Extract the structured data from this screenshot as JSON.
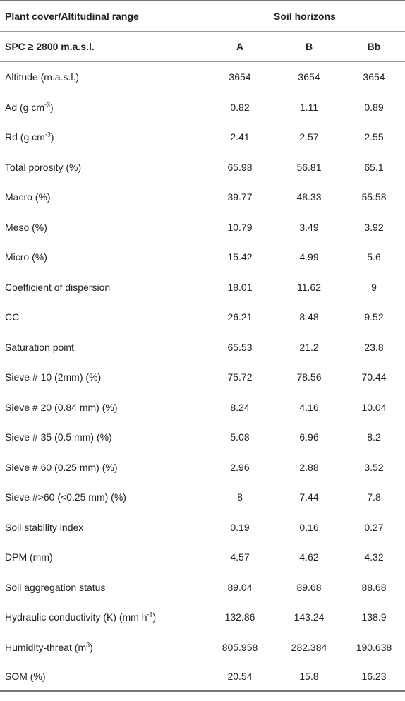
{
  "header": {
    "col0_title": "Plant cover/Altitudinal range",
    "group_title": "Soil horizons",
    "row_group_label": "SPC ≥ 2800 m.a.s.l.",
    "columns": [
      "A",
      "B",
      "Bb"
    ]
  },
  "rows": [
    {
      "label": "Altitude (m.a.s.l.)",
      "sup": "",
      "label_after": "",
      "values": [
        "3654",
        "3654",
        "3654"
      ]
    },
    {
      "label": "Ad (g cm",
      "sup": "-3",
      "label_after": ")",
      "values": [
        "0.82",
        "1.11",
        "0.89"
      ]
    },
    {
      "label": "Rd (g cm",
      "sup": "-3",
      "label_after": ")",
      "values": [
        "2.41",
        "2.57",
        "2.55"
      ]
    },
    {
      "label": "Total porosity (%)",
      "sup": "",
      "label_after": "",
      "values": [
        "65.98",
        "56.81",
        "65.1"
      ]
    },
    {
      "label": "Macro (%)",
      "sup": "",
      "label_after": "",
      "values": [
        "39.77",
        "48.33",
        "55.58"
      ]
    },
    {
      "label": "Meso (%)",
      "sup": "",
      "label_after": "",
      "values": [
        "10.79",
        "3.49",
        "3.92"
      ]
    },
    {
      "label": "Micro (%)",
      "sup": "",
      "label_after": "",
      "values": [
        "15.42",
        "4.99",
        "5.6"
      ]
    },
    {
      "label": "Coefficient of dispersion",
      "sup": "",
      "label_after": "",
      "values": [
        "18.01",
        "11.62",
        "9"
      ]
    },
    {
      "label": "CC",
      "sup": "",
      "label_after": "",
      "values": [
        "26.21",
        "8.48",
        "9.52"
      ]
    },
    {
      "label": "Saturation point",
      "sup": "",
      "label_after": "",
      "values": [
        "65.53",
        "21.2",
        "23.8"
      ]
    },
    {
      "label": "Sieve # 10 (2mm) (%)",
      "sup": "",
      "label_after": "",
      "values": [
        "75.72",
        "78.56",
        "70.44"
      ]
    },
    {
      "label": "Sieve # 20 (0.84 mm) (%)",
      "sup": "",
      "label_after": "",
      "values": [
        "8.24",
        "4.16",
        "10.04"
      ]
    },
    {
      "label": "Sieve # 35 (0.5 mm) (%)",
      "sup": "",
      "label_after": "",
      "values": [
        "5.08",
        "6.96",
        "8.2"
      ]
    },
    {
      "label": "Sieve # 60 (0.25 mm) (%)",
      "sup": "",
      "label_after": "",
      "values": [
        "2.96",
        "2.88",
        "3.52"
      ]
    },
    {
      "label": "Sieve #>60 (<0.25 mm) (%)",
      "sup": "",
      "label_after": "",
      "values": [
        "8",
        "7.44",
        "7.8"
      ]
    },
    {
      "label": "Soil stability index",
      "sup": "",
      "label_after": "",
      "values": [
        "0.19",
        "0.16",
        "0.27"
      ]
    },
    {
      "label": "DPM (mm)",
      "sup": "",
      "label_after": "",
      "values": [
        "4.57",
        "4.62",
        "4.32"
      ]
    },
    {
      "label": "Soil aggregation status",
      "sup": "",
      "label_after": "",
      "values": [
        "89.04",
        "89.68",
        "88.68"
      ]
    },
    {
      "label": "Hydraulic conductivity (K) (mm h",
      "sup": "-1",
      "label_after": ")",
      "values": [
        "132.86",
        "143.24",
        "138.9"
      ]
    },
    {
      "label": "Humidity-threat (m",
      "sup": "3",
      "label_after": ")",
      "values": [
        "805.958",
        "282.384",
        "190.638"
      ]
    },
    {
      "label": "SOM (%)",
      "sup": "",
      "label_after": "",
      "values": [
        "20.54",
        "15.8",
        "16.23"
      ]
    }
  ]
}
